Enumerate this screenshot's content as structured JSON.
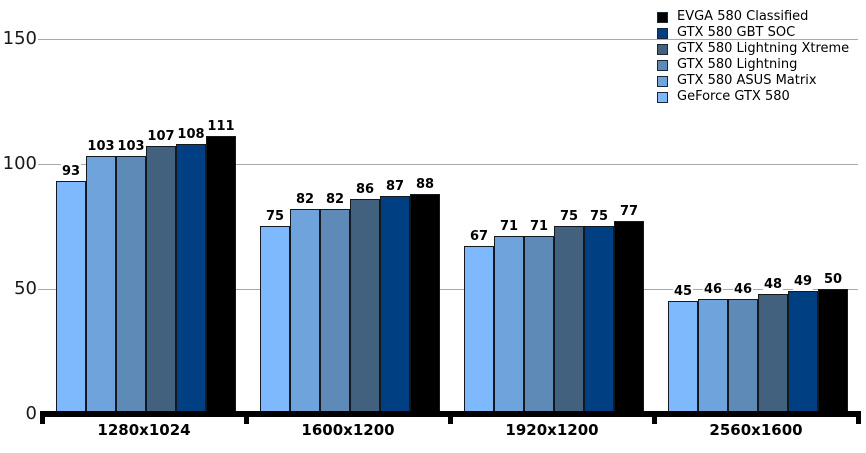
{
  "chart_data": {
    "type": "bar",
    "title": "",
    "xlabel": "",
    "ylabel": "",
    "categories": [
      "1280x1024",
      "1600x1200",
      "1920x1200",
      "2560x1600"
    ],
    "series": [
      {
        "name": "GeForce GTX 580",
        "color": "#7EB9FE",
        "values": [
          93,
          75,
          67,
          45
        ]
      },
      {
        "name": "GTX 580 ASUS Matrix",
        "color": "#6FA3DC",
        "values": [
          103,
          82,
          71,
          46
        ]
      },
      {
        "name": "GTX 580 Lightning",
        "color": "#5E8AB8",
        "values": [
          103,
          82,
          71,
          46
        ]
      },
      {
        "name": "GTX 580 Lightning Xtreme",
        "color": "#41617F",
        "values": [
          107,
          86,
          75,
          48
        ]
      },
      {
        "name": "GTX 580 GBT SOC",
        "color": "#003F82",
        "values": [
          108,
          87,
          75,
          49
        ]
      },
      {
        "name": "EVGA 580 Classified",
        "color": "#000000",
        "values": [
          111,
          88,
          77,
          50
        ]
      }
    ],
    "legend_order": [
      "EVGA 580 Classified",
      "GTX 580 GBT SOC",
      "GTX 580 Lightning Xtreme",
      "GTX 580 Lightning",
      "GTX 580 ASUS Matrix",
      "GeForce GTX 580"
    ],
    "legend_position": "top-right",
    "yticks": [
      0,
      50,
      100,
      150
    ],
    "ytick_labels": [
      "0",
      "50",
      "100",
      "150"
    ],
    "ylim": [
      0,
      165
    ],
    "grid": true,
    "colors": {
      "gridline": "#a9a9a9",
      "axis": "#000000",
      "bar_border": "#14191f",
      "text": "#000000"
    }
  }
}
